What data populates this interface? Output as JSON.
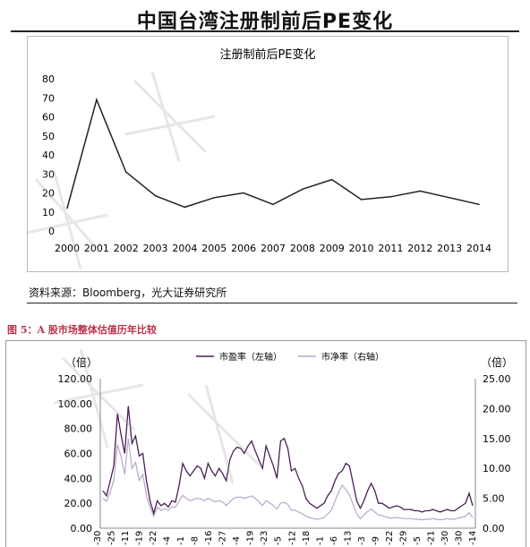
{
  "main_title": "中国台湾注册制前后PE变化",
  "source_text": "资料来源：Bloomberg，光大证券研究所",
  "figure5_caption": "图 5：A 股市场整体估值历年比较",
  "chart_data": [
    {
      "type": "line",
      "title": "注册制前后PE变化",
      "x": [
        "2000",
        "2001",
        "2002",
        "2003",
        "2004",
        "2005",
        "2006",
        "2007",
        "2008",
        "2009",
        "2010",
        "2011",
        "2012",
        "2013",
        "2014"
      ],
      "series": [
        {
          "values": [
            12,
            69,
            31,
            18.5,
            12.5,
            17.5,
            20,
            14,
            22,
            27,
            16.5,
            18,
            21,
            17.5,
            14
          ]
        }
      ],
      "ylim": [
        0,
        80
      ],
      "yticks": [
        0,
        10,
        20,
        30,
        40,
        50,
        60,
        70,
        80
      ],
      "grid": false,
      "color": "#222222"
    },
    {
      "type": "line",
      "y_left_unit": "（倍）",
      "y_right_unit": "（倍）",
      "ylim_left": [
        0,
        120
      ],
      "yticks_left": [
        "0.00",
        "20.00",
        "40.00",
        "60.00",
        "80.00",
        "100.00",
        "120.00"
      ],
      "ylim_right": [
        0,
        25
      ],
      "yticks_right": [
        "0.00",
        "5.00",
        "10.00",
        "15.00",
        "20.00",
        "25.00"
      ],
      "legend_placement": "top-center",
      "x_tick_fragments": [
        "-30",
        "-25",
        "-11",
        "-19",
        "-22",
        "-4",
        "-1",
        "-8",
        "-16",
        "-27",
        "-4",
        "-19",
        "-23",
        "-5",
        "-12",
        "-18",
        "-1",
        "-6",
        "-13",
        "-3",
        "-9",
        "-22",
        "-29",
        "-5",
        "-21",
        "-30",
        "-30",
        "-14"
      ],
      "series": [
        {
          "name": "市盈率（左轴）",
          "axis": "left",
          "color": "#4a1f55",
          "values": [
            30,
            26,
            38,
            50,
            92,
            75,
            60,
            98,
            68,
            74,
            58,
            60,
            38,
            22,
            12,
            22,
            18,
            20,
            17,
            22,
            21,
            34,
            52,
            46,
            42,
            46,
            50,
            48,
            40,
            52,
            46,
            42,
            48,
            44,
            38,
            55,
            62,
            65,
            64,
            60,
            66,
            70,
            62,
            55,
            48,
            66,
            58,
            50,
            40,
            70,
            72,
            64,
            46,
            48,
            40,
            34,
            24,
            20,
            18,
            16,
            18,
            20,
            26,
            30,
            38,
            44,
            46,
            52,
            50,
            36,
            22,
            16,
            22,
            30,
            36,
            30,
            20,
            20,
            18,
            16,
            17,
            18,
            17,
            15,
            15,
            15,
            14,
            14,
            13,
            14,
            14,
            15,
            14,
            13,
            14,
            15,
            14,
            14,
            16,
            18,
            20,
            28,
            18
          ]
        },
        {
          "name": "市净率（右轴）",
          "axis": "right",
          "color": "#b7a8c9",
          "values": [
            5,
            4.5,
            6,
            8,
            14,
            12,
            9,
            15,
            10,
            11,
            8,
            9,
            5.5,
            3.5,
            2,
            3.5,
            3,
            3.3,
            3,
            3.6,
            3.5,
            4.5,
            5.5,
            5,
            4.6,
            4.8,
            5,
            4.9,
            4.6,
            5,
            4.7,
            4.4,
            4.6,
            4.4,
            3.8,
            4.4,
            5,
            5.2,
            5.2,
            5,
            5.2,
            5.4,
            5,
            4.4,
            3.8,
            4.6,
            4.2,
            3.8,
            3.2,
            4.2,
            4.3,
            4,
            3,
            3,
            2.7,
            2.4,
            2,
            1.8,
            1.6,
            1.5,
            1.6,
            1.8,
            2.4,
            3,
            4.5,
            6,
            7.2,
            6.5,
            5.6,
            4,
            2.4,
            1.6,
            2.2,
            2.8,
            3.2,
            2.7,
            2.2,
            2.1,
            1.9,
            1.7,
            1.7,
            1.8,
            1.7,
            1.6,
            1.6,
            1.6,
            1.5,
            1.5,
            1.4,
            1.5,
            1.5,
            1.6,
            1.5,
            1.4,
            1.5,
            1.6,
            1.5,
            1.5,
            1.7,
            1.8,
            2,
            2.6,
            1.8
          ]
        }
      ]
    }
  ]
}
